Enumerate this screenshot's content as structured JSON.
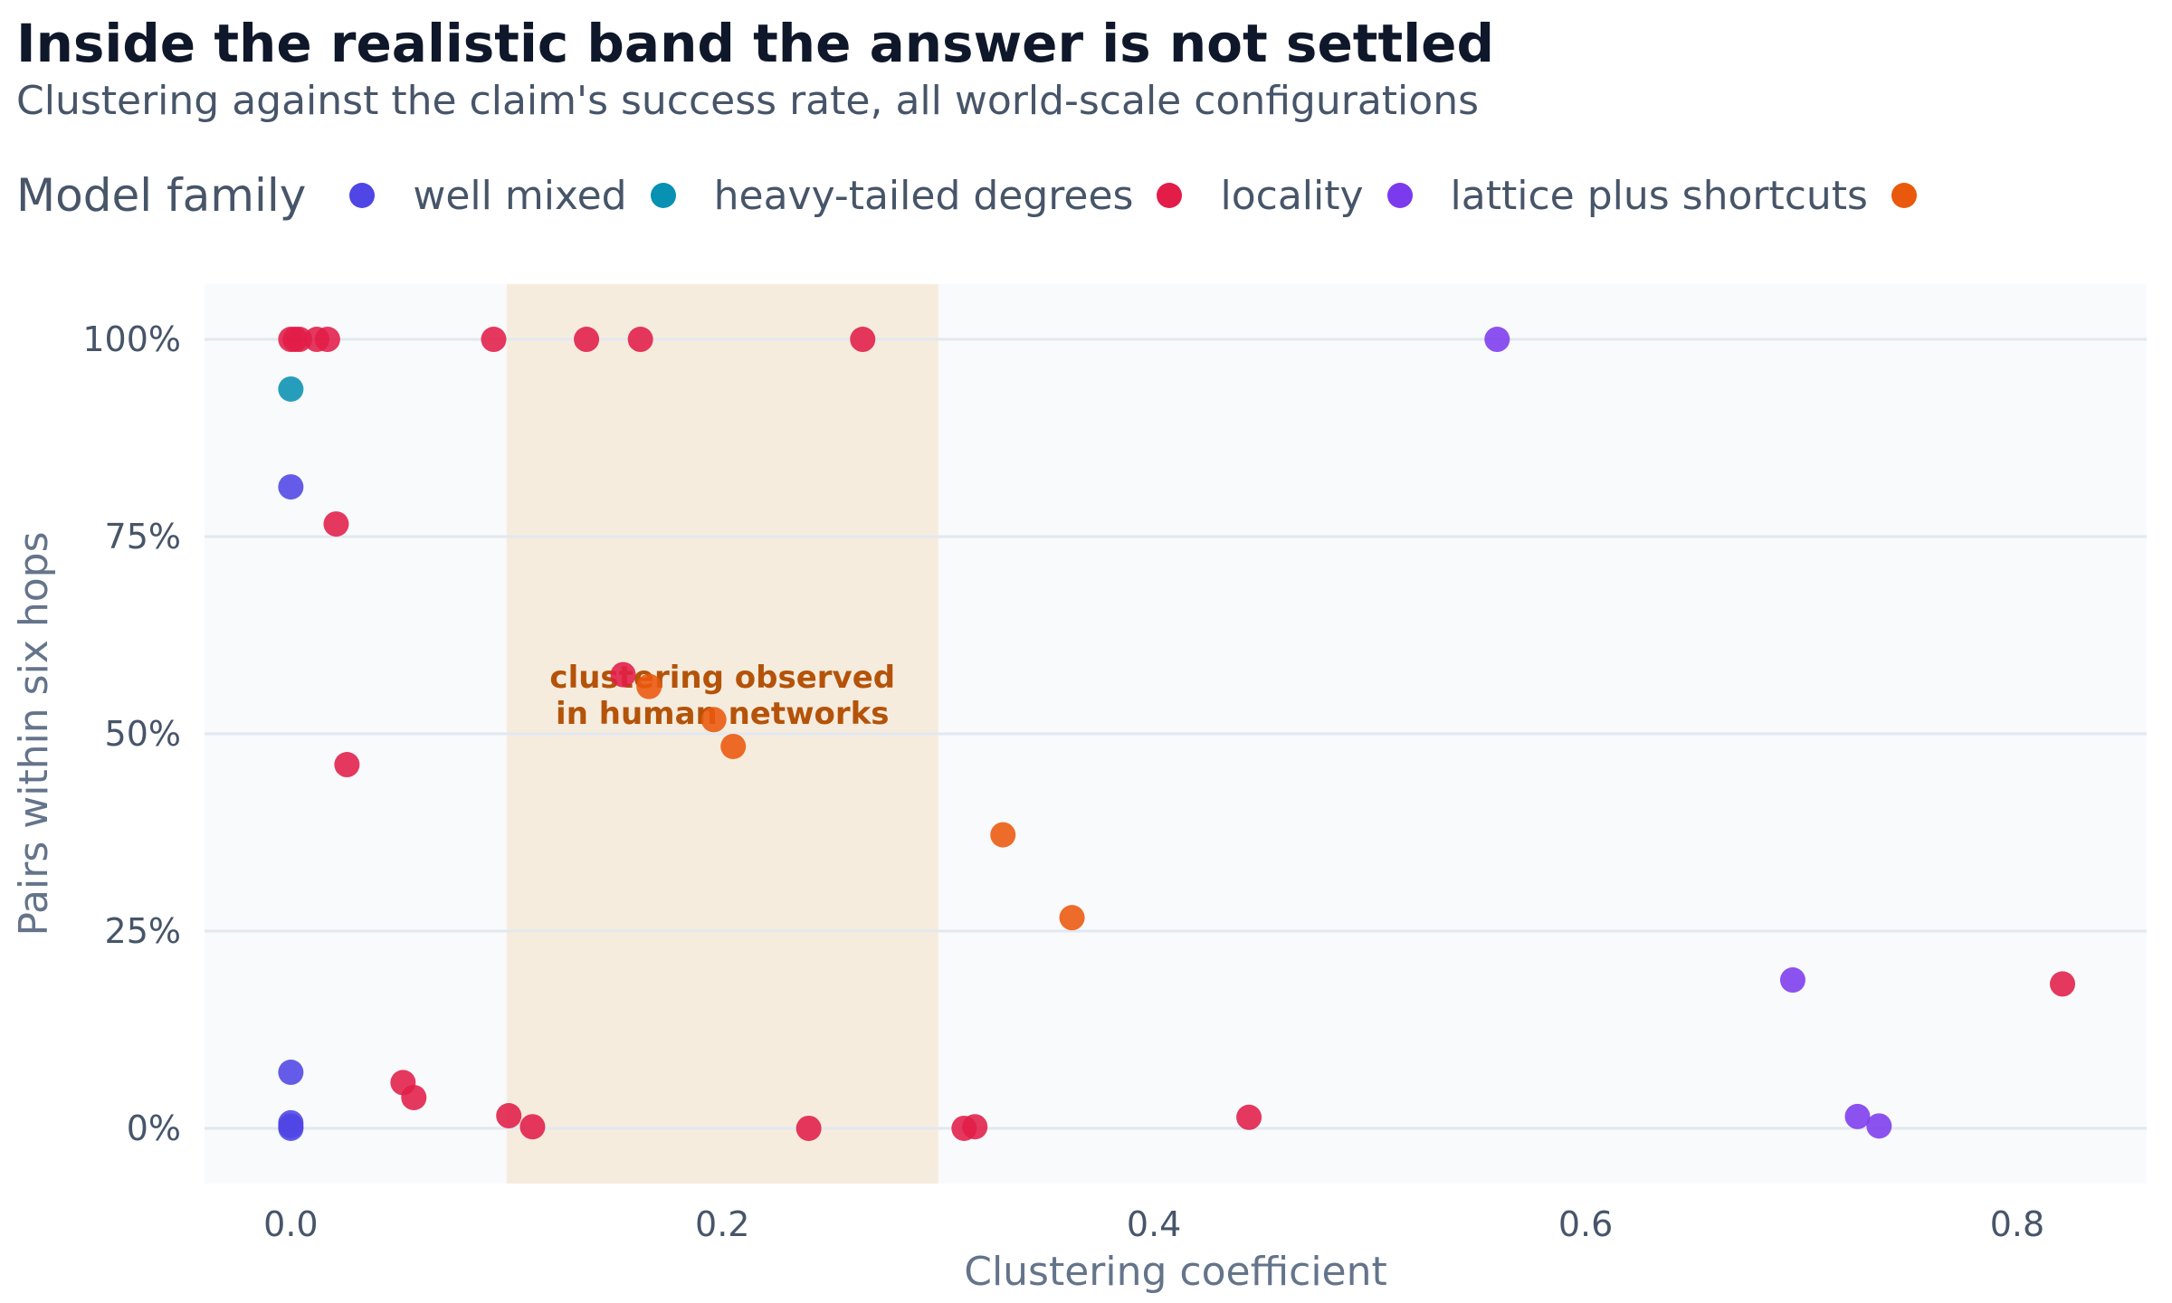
{
  "chart_data": {
    "type": "scatter",
    "title": "Inside the realistic band the answer is not settled",
    "subtitle": "Clustering against the claim's success rate, all world-scale configurations",
    "xlabel": "Clustering coefficient",
    "ylabel": "Pairs within six hops",
    "xlim": [
      -0.04,
      0.86
    ],
    "ylim": [
      -0.07,
      1.07
    ],
    "x_ticks": [
      0.0,
      0.2,
      0.4,
      0.6,
      0.8
    ],
    "x_tick_labels": [
      "0.0",
      "0.2",
      "0.4",
      "0.6",
      "0.8"
    ],
    "y_ticks": [
      0,
      0.25,
      0.5,
      0.75,
      1.0
    ],
    "y_tick_labels": [
      "0%",
      "25%",
      "50%",
      "75%",
      "100%"
    ],
    "grid": "horizontal",
    "legend": {
      "title": "Model family",
      "placement": "top-left"
    },
    "band": {
      "x_range": [
        0.1,
        0.3
      ],
      "label": [
        "clustering observed",
        "in human networks"
      ],
      "color": "#b45309"
    },
    "series": [
      {
        "name": "well mixed",
        "color": "#4f46e5",
        "x": [
          0.0,
          0.0,
          0.0,
          0.0,
          0.0
        ],
        "y": [
          0.813,
          0.071,
          0.007,
          0.003,
          0.0
        ]
      },
      {
        "name": "heavy-tailed degrees",
        "color": "#0891b2",
        "x": [
          0.0
        ],
        "y": [
          0.937
        ]
      },
      {
        "name": "locality",
        "color": "#e11d48",
        "x": [
          0.0,
          0.002,
          0.004,
          0.012,
          0.017,
          0.094,
          0.137,
          0.162,
          0.265,
          0.021,
          0.026,
          0.154,
          0.052,
          0.057,
          0.101,
          0.112,
          0.24,
          0.312,
          0.317,
          0.444,
          0.821
        ],
        "y": [
          1.0,
          1.0,
          1.0,
          1.0,
          1.0,
          1.0,
          1.0,
          1.0,
          1.0,
          0.766,
          0.461,
          0.575,
          0.058,
          0.039,
          0.016,
          0.002,
          0.0,
          0.0,
          0.002,
          0.014,
          0.183
        ]
      },
      {
        "name": "lattice plus shortcuts",
        "color": "#7c3aed",
        "x": [
          0.559,
          0.696,
          0.726,
          0.736
        ],
        "y": [
          1.0,
          0.188,
          0.015,
          0.003
        ]
      },
      {
        "name": "",
        "color": "#ea580c",
        "x": [
          0.166,
          0.196,
          0.205,
          0.33,
          0.362
        ],
        "y": [
          0.56,
          0.518,
          0.484,
          0.372,
          0.267
        ]
      }
    ]
  }
}
